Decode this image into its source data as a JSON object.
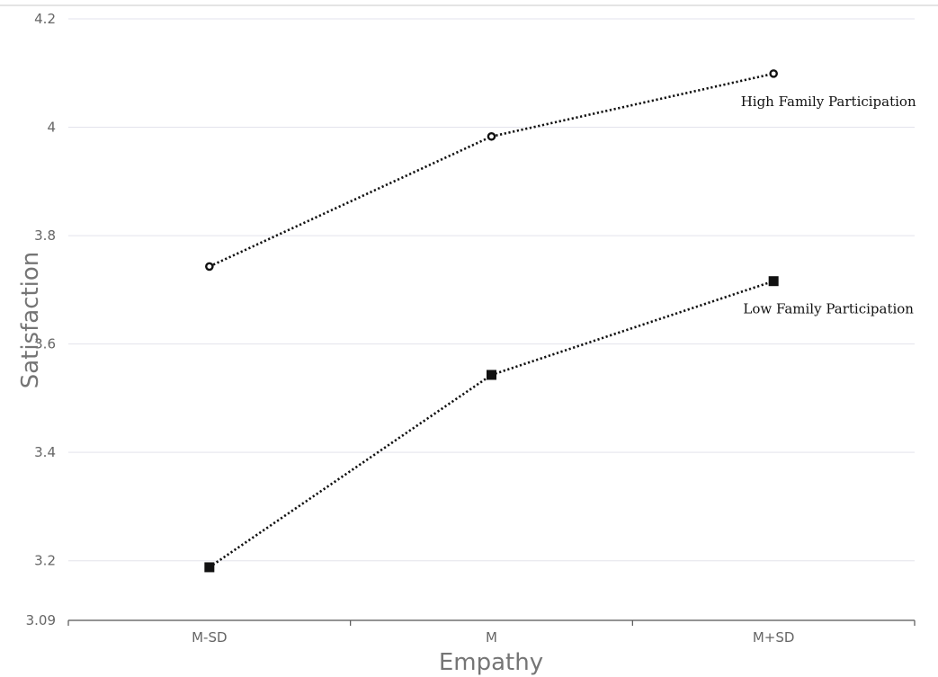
{
  "chart_data": {
    "type": "line",
    "xlabel": "Empathy",
    "ylabel": "Satisfaction",
    "categories": [
      "M-SD",
      "M",
      "M+SD"
    ],
    "ylim": [
      3.09,
      4.2
    ],
    "yticks": [
      "3.09",
      "3.2",
      "3.4",
      "3.6",
      "3.8",
      "4",
      "4.2"
    ],
    "grid": true,
    "series": [
      {
        "name": "High Family Participation",
        "values": [
          3.743,
          3.983,
          4.099
        ],
        "marker": "circle"
      },
      {
        "name": "Low Family Participation",
        "values": [
          3.188,
          3.543,
          3.716
        ],
        "marker": "square"
      }
    ],
    "colors": {
      "line": "#111111",
      "grid": "#e3e3ec",
      "axis": "#555555",
      "tick_text": "#666666",
      "axis_title": "#757575"
    }
  }
}
